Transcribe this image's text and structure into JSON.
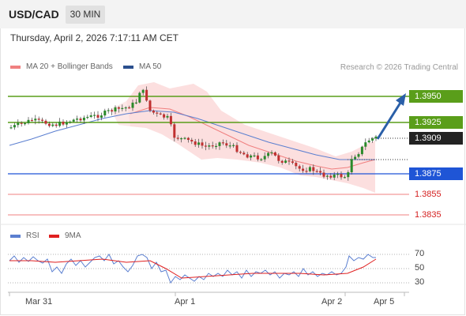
{
  "header": {
    "symbol": "USD/CAD",
    "timeframe": "30 MIN"
  },
  "datetime": "Thursday, April 2, 2026 7:17:11 AM CET",
  "legend": {
    "bollinger": {
      "label": "MA 20 + Bollinger Bands",
      "color": "#f08080"
    },
    "ma50": {
      "label": "MA 50",
      "color": "#2b4f8e"
    }
  },
  "credit": "Research © 2026 Trading Central",
  "price_levels": [
    {
      "label": "1.3950",
      "style": "green"
    },
    {
      "label": "1.3925",
      "style": "green"
    },
    {
      "label": "1.3909",
      "style": "current"
    },
    {
      "label": "1.3875",
      "style": "blue"
    },
    {
      "label": "1.3855",
      "style": "red"
    },
    {
      "label": "1.3835",
      "style": "red"
    }
  ],
  "rsi_legend": {
    "rsi": {
      "label": "RSI",
      "color": "#5b7fd0"
    },
    "ma": {
      "label": "9MA",
      "color": "#e02020"
    }
  },
  "rsi_ticks": [
    "70",
    "50",
    "30"
  ],
  "x_labels": [
    "Mar 31",
    "Apr 1",
    "Apr 2",
    "Apr 5"
  ],
  "colors": {
    "up": "#2a8a2a",
    "down": "#c03030",
    "green_line": "#5a9e1a",
    "blue_line": "#1f55d6",
    "arrow": "#2a5fa8"
  }
}
